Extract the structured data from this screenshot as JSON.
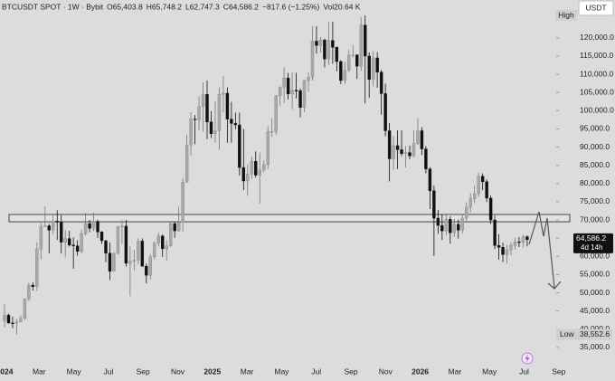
{
  "chart_data": {
    "type": "candlestick",
    "title": "BTCUSDT SPOT · 1W · Bybit",
    "ohlc_labels": [
      "O65,403.8",
      "H65,748.2",
      "L62,747.3",
      "C64,586.2"
    ],
    "change": "−817.6 (−1.25%)",
    "volume": "Vol20.64 K",
    "currency": "USDT",
    "high_label": "High",
    "low_label": "Low",
    "low": {
      "value": 38552.6,
      "label": "38,552.6"
    },
    "price_tag": "64,586.2",
    "countdown": "4d 14h",
    "up_color": "#a8a8a8",
    "down_color": "#111111",
    "zone": [
      69500,
      71500
    ],
    "ylim": [
      31000,
      130400
    ],
    "yticks": [
      {
        "value": 35000,
        "label": "35,000.0"
      },
      {
        "value": 40000,
        "label": "40,000.0"
      },
      {
        "value": 45000,
        "label": "45,000.0"
      },
      {
        "value": 50000,
        "label": "50,000.0"
      },
      {
        "value": 55000,
        "label": "55,000.0"
      },
      {
        "value": 60000,
        "label": "60,000.0"
      },
      {
        "value": 65000,
        "label": "65,000.0"
      },
      {
        "value": 70000,
        "label": "70,000.0"
      },
      {
        "value": 75000,
        "label": "75,000.0"
      },
      {
        "value": 80000,
        "label": "80,000.0"
      },
      {
        "value": 85000,
        "label": "85,000.0"
      },
      {
        "value": 90000,
        "label": "90,000.0"
      },
      {
        "value": 95000,
        "label": "95,000.0"
      },
      {
        "value": 100000,
        "label": "100,000.0"
      },
      {
        "value": 105000,
        "label": "105,000.0"
      },
      {
        "value": 110000,
        "label": "110,000.0"
      },
      {
        "value": 115000,
        "label": "115,000.0"
      },
      {
        "value": 120000,
        "label": "120,000.0"
      }
    ],
    "xticks": [
      "2024",
      "Mar",
      "May",
      "Jul",
      "Sep",
      "Nov",
      "2025",
      "Mar",
      "May",
      "Jul",
      "Sep",
      "Nov",
      "2026",
      "Mar",
      "May",
      "Jul",
      "Sep"
    ],
    "candles": [
      [
        42300,
        47000,
        40600,
        43900
      ],
      [
        43900,
        44300,
        41500,
        41700
      ],
      [
        41700,
        43500,
        40300,
        41600
      ],
      [
        41600,
        42800,
        38552.6,
        42000
      ],
      [
        42000,
        43800,
        41900,
        43000
      ],
      [
        43000,
        48500,
        42600,
        48300
      ],
      [
        48300,
        52800,
        47700,
        52100
      ],
      [
        52100,
        52900,
        50600,
        51700
      ],
      [
        51700,
        63900,
        50500,
        62000
      ],
      [
        62000,
        69100,
        59100,
        68300
      ],
      [
        68300,
        73800,
        68000,
        68400
      ],
      [
        68400,
        68900,
        60800,
        67200
      ],
      [
        67200,
        71500,
        66000,
        69700
      ],
      [
        69700,
        72700,
        64500,
        69400
      ],
      [
        69400,
        71300,
        60800,
        63900
      ],
      [
        63900,
        67200,
        59700,
        64900
      ],
      [
        64900,
        67000,
        62700,
        63100
      ],
      [
        63100,
        65200,
        56600,
        62900
      ],
      [
        62900,
        64400,
        60200,
        61400
      ],
      [
        61400,
        67400,
        60800,
        66200
      ],
      [
        66200,
        71900,
        65800,
        69000
      ],
      [
        69000,
        70000,
        66600,
        67700
      ],
      [
        67700,
        72000,
        66900,
        69600
      ],
      [
        69600,
        70100,
        65100,
        66700
      ],
      [
        66700,
        66900,
        63400,
        64300
      ],
      [
        64300,
        64500,
        58400,
        60900
      ],
      [
        60900,
        63800,
        53500,
        55900
      ],
      [
        55900,
        61200,
        55900,
        60800
      ],
      [
        60800,
        68400,
        60600,
        68200
      ],
      [
        68200,
        69900,
        63500,
        68300
      ],
      [
        68300,
        70000,
        57200,
        58100
      ],
      [
        58100,
        62700,
        49100,
        58700
      ],
      [
        58700,
        61800,
        56100,
        59000
      ],
      [
        59000,
        65000,
        57800,
        64200
      ],
      [
        64200,
        64900,
        57200,
        57300
      ],
      [
        57300,
        58000,
        52600,
        54800
      ],
      [
        54800,
        60600,
        53600,
        59900
      ],
      [
        59900,
        64100,
        59200,
        63600
      ],
      [
        63600,
        66500,
        62700,
        65600
      ],
      [
        65600,
        66000,
        59800,
        62100
      ],
      [
        62100,
        64400,
        58900,
        62900
      ],
      [
        62900,
        69400,
        62600,
        69000
      ],
      [
        69000,
        69500,
        65100,
        67000
      ],
      [
        67000,
        73600,
        66800,
        69400
      ],
      [
        69400,
        81500,
        66800,
        80400
      ],
      [
        80400,
        93400,
        80200,
        90600
      ],
      [
        90600,
        99600,
        87700,
        97700
      ],
      [
        97700,
        98800,
        90800,
        97500
      ],
      [
        97500,
        104000,
        94600,
        101100
      ],
      [
        101100,
        107800,
        94200,
        104500
      ],
      [
        104500,
        108300,
        92200,
        96900
      ],
      [
        96900,
        99900,
        92500,
        93700
      ],
      [
        93700,
        102700,
        91200,
        94500
      ],
      [
        94500,
        106400,
        89300,
        104500
      ],
      [
        104500,
        109600,
        99500,
        104800
      ],
      [
        104800,
        106400,
        91200,
        97700
      ],
      [
        97700,
        102400,
        91200,
        96500
      ],
      [
        96500,
        99500,
        94900,
        96100
      ],
      [
        96100,
        99500,
        82200,
        84400
      ],
      [
        84400,
        95000,
        78200,
        80700
      ],
      [
        80700,
        85300,
        76600,
        82600
      ],
      [
        82600,
        87400,
        81200,
        86100
      ],
      [
        86100,
        88800,
        81600,
        82300
      ],
      [
        82300,
        88500,
        74500,
        83700
      ],
      [
        83700,
        86400,
        83000,
        85200
      ],
      [
        85200,
        95800,
        83900,
        94300
      ],
      [
        94300,
        97900,
        92800,
        94300
      ],
      [
        94300,
        104300,
        93400,
        104100
      ],
      [
        104100,
        106700,
        101400,
        106500
      ],
      [
        106500,
        112000,
        102100,
        109000
      ],
      [
        109000,
        110400,
        103100,
        104600
      ],
      [
        104600,
        110600,
        100400,
        105600
      ],
      [
        105600,
        110400,
        103400,
        105500
      ],
      [
        105500,
        106100,
        98200,
        100900
      ],
      [
        100900,
        108500,
        99600,
        108300
      ],
      [
        108300,
        110500,
        105200,
        109200
      ],
      [
        109200,
        123200,
        108300,
        119100
      ],
      [
        119100,
        123200,
        115700,
        117900
      ],
      [
        117900,
        120200,
        116000,
        119400
      ],
      [
        119400,
        119800,
        111900,
        114200
      ],
      [
        114200,
        124400,
        112600,
        119300
      ],
      [
        119300,
        124500,
        112900,
        117400
      ],
      [
        117400,
        117600,
        110800,
        113500
      ],
      [
        113500,
        113900,
        107300,
        108300
      ],
      [
        108300,
        113400,
        107300,
        111100
      ],
      [
        111100,
        116700,
        110700,
        115300
      ],
      [
        115300,
        118000,
        114600,
        115300
      ],
      [
        115300,
        115500,
        108700,
        112200
      ],
      [
        112200,
        125600,
        111000,
        123500
      ],
      [
        123500,
        126200,
        102000,
        115000
      ],
      [
        115000,
        116000,
        103500,
        108600
      ],
      [
        108600,
        116400,
        106700,
        114500
      ],
      [
        114500,
        116100,
        106300,
        110600
      ],
      [
        110600,
        111200,
        98900,
        104700
      ],
      [
        104700,
        107400,
        93000,
        94500
      ],
      [
        94500,
        96600,
        80600,
        86800
      ],
      [
        86800,
        93000,
        83800,
        90400
      ],
      [
        90400,
        94600,
        84000,
        89300
      ],
      [
        89300,
        94600,
        87500,
        88200
      ],
      [
        88200,
        90300,
        84400,
        88500
      ],
      [
        88500,
        90400,
        86600,
        87600
      ],
      [
        87600,
        94700,
        87100,
        91000
      ],
      [
        91000,
        97900,
        90600,
        94500
      ],
      [
        94500,
        95500,
        87800,
        89500
      ],
      [
        89500,
        90300,
        82800,
        84000
      ],
      [
        84000,
        84500,
        73000,
        78000
      ],
      [
        78000,
        79500,
        60100,
        70500
      ],
      [
        70500,
        72800,
        66200,
        68500
      ],
      [
        68500,
        71500,
        64500,
        67000
      ],
      [
        67000,
        71800,
        65800,
        70200
      ],
      [
        70200,
        71000,
        63500,
        66500
      ],
      [
        66500,
        70300,
        65400,
        68800
      ],
      [
        68800,
        70100,
        64900,
        67200
      ],
      [
        67200,
        71600,
        66300,
        70500
      ],
      [
        70500,
        74800,
        69700,
        73500
      ],
      [
        73500,
        77300,
        72100,
        75800
      ],
      [
        75800,
        79500,
        74600,
        77200
      ],
      [
        77200,
        83000,
        76300,
        82000
      ],
      [
        82000,
        82800,
        78200,
        80500
      ],
      [
        80500,
        81200,
        74900,
        76000
      ],
      [
        76000,
        76700,
        68900,
        70000
      ],
      [
        70000,
        71200,
        62000,
        63000
      ],
      [
        63000,
        66100,
        59100,
        62500
      ],
      [
        62500,
        63800,
        58500,
        60500
      ],
      [
        60500,
        63200,
        58000,
        61800
      ],
      [
        61800,
        64000,
        60300,
        63000
      ],
      [
        63000,
        65100,
        61900,
        64000
      ],
      [
        64000,
        65300,
        62600,
        63800
      ],
      [
        63800,
        65900,
        62400,
        65400
      ],
      [
        65403.8,
        65748.2,
        62747.3,
        64586.2
      ]
    ]
  }
}
